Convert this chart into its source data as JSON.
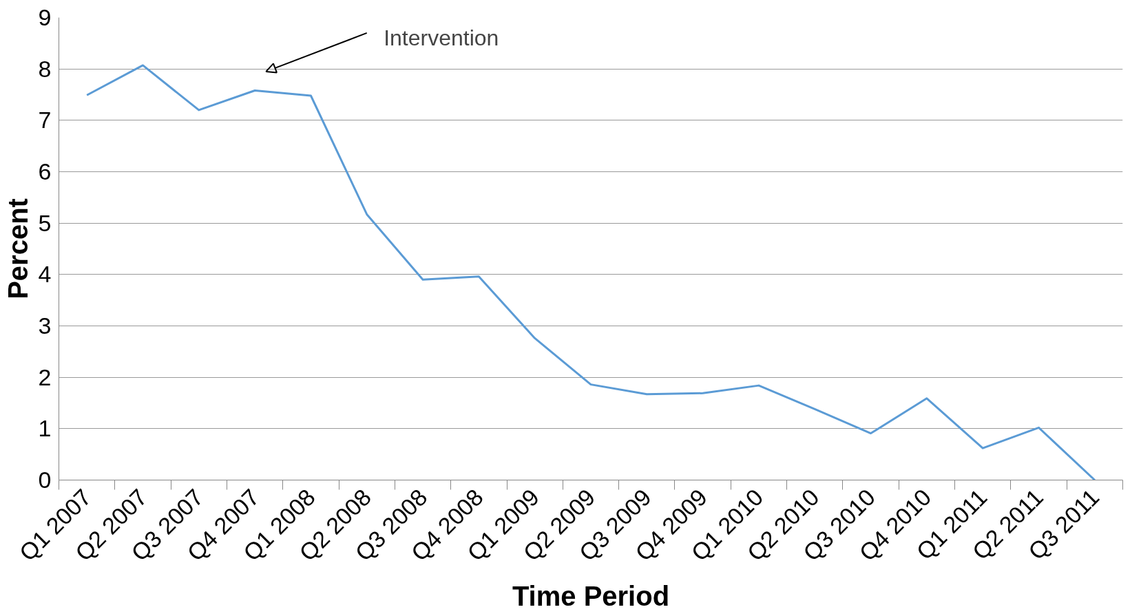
{
  "chart_data": {
    "type": "line",
    "xlabel": "Time Period",
    "ylabel": "Percent",
    "categories": [
      "Q1 2007",
      "Q2 2007",
      "Q3 2007",
      "Q4 2007",
      "Q1 2008",
      "Q2 2008",
      "Q3 2008",
      "Q4 2008",
      "Q1 2009",
      "Q2 2009",
      "Q3 2009",
      "Q4 2009",
      "Q1 2010",
      "Q2 2010",
      "Q3 2010",
      "Q4 2010",
      "Q1 2011",
      "Q2 2011",
      "Q3 2011"
    ],
    "series": [
      {
        "color": "#5b9bd5",
        "values": [
          7.49,
          8.07,
          7.2,
          7.58,
          7.48,
          5.17,
          3.9,
          3.96,
          2.76,
          1.86,
          1.67,
          1.69,
          1.84,
          1.38,
          0.91,
          1.59,
          0.62,
          1.02,
          0
        ]
      }
    ],
    "ylim": [
      0,
      9
    ],
    "yticks": [
      0,
      1,
      2,
      3,
      4,
      5,
      6,
      7,
      8,
      9
    ],
    "grid": "y",
    "marker": "none",
    "line_style": "solid",
    "annotations": [
      "Intervention"
    ]
  }
}
